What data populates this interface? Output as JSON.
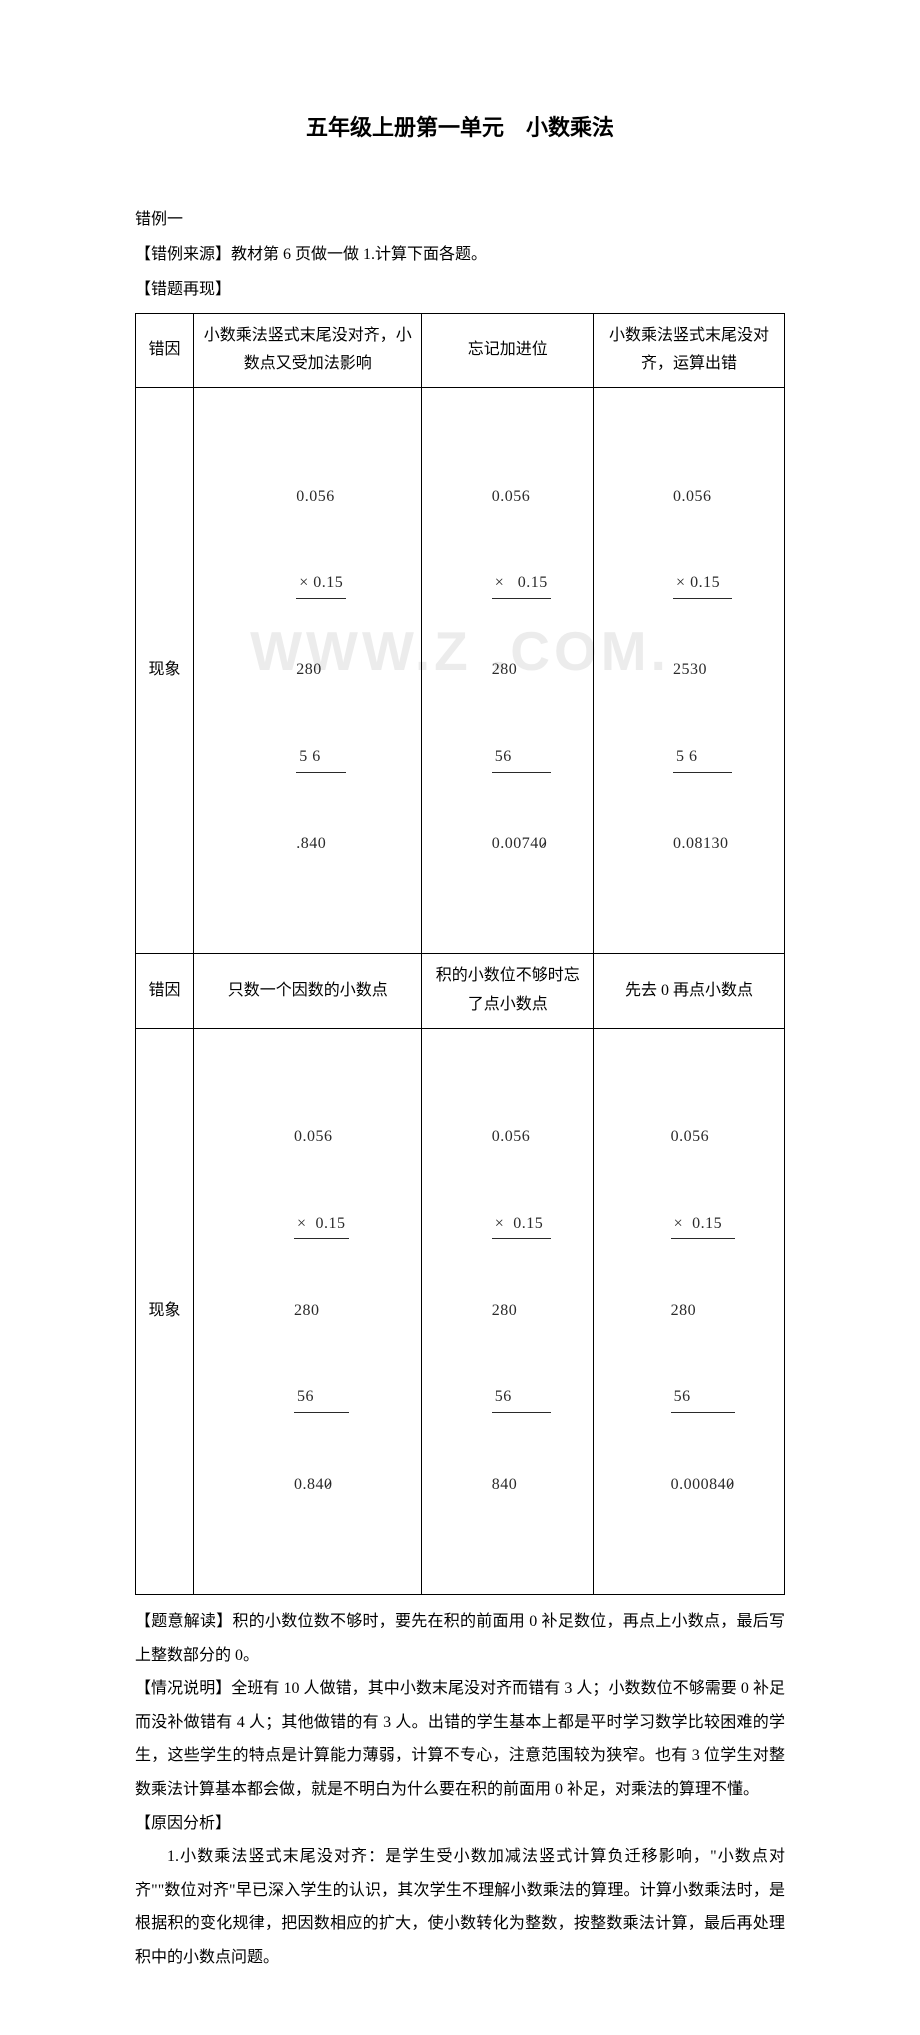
{
  "title": "五年级上册第一单元　小数乘法",
  "labels": {
    "example": "错例一",
    "source_label": "【错例来源】",
    "source_text": "教材第 6 页做一做 1.计算下面各题。",
    "reproduce_label": "【错题再现】",
    "interpret_label": "【题意解读】",
    "interpret_text": "积的小数位数不够时，要先在积的前面用 0 补足数位，再点上小数点，最后写上整数部分的 0。",
    "situation_label": "【情况说明】",
    "situation_text": "全班有 10 人做错，其中小数末尾没对齐而错有 3 人；小数数位不够需要 0 补足而没补做错有 4 人；其他做错的有 3 人。出错的学生基本上都是平时学习数学比较困难的学生，这些学生的特点是计算能力薄弱，计算不专心，注意范围较为狭窄。也有 3 位学生对整数乘法计算基本都会做，就是不明白为什么要在积的前面用 0 补足，对乘法的算理不懂。",
    "cause_label": "【原因分析】",
    "cause_text": "1.小数乘法竖式末尾没对齐：是学生受小数加减法竖式计算负迁移影响，\"小数点对齐\"\"数位对齐\"早已深入学生的认识，其次学生不理解小数乘法的算理。计算小数乘法时，是根据积的变化规律，把因数相应的扩大，使小数转化为整数，按整数乘法计算，最后再处理积中的小数点问题。"
  },
  "table": {
    "row_labels": {
      "cause": "错因",
      "phenom": "现象"
    },
    "r1": {
      "c1": "小数乘法竖式末尾没对齐，小数点又受加法影响",
      "c2": "忘记加进位",
      "c3": "小数乘法竖式末尾没对齐，运算出错"
    },
    "r3": {
      "c1": "只数一个因数的小数点",
      "c2": "积的小数位不够时忘了点小数点",
      "c3": "先去 0 再点小数点"
    }
  },
  "watermark": "WWW.Z       .COM.",
  "colors": {
    "text": "#000000",
    "bg": "#ffffff",
    "watermark": "rgba(200,200,200,0.35)",
    "handwriting": "#2a2a2a"
  },
  "handwriting_calcs": {
    "r2c1": {
      "n1": "0.056",
      "n2": "× 0.15",
      "p1": "280",
      "p2": "5 6   ",
      "res": ".840"
    },
    "r2c2": {
      "n1": "0.056",
      "n2": "×   0.15",
      "p1": "280",
      "p2": "56  ",
      "res": "0.0074",
      "res_strike": "0"
    },
    "r2c3": {
      "n1": "0.056",
      "n2": "× 0.15  ",
      "p1": "2530",
      "p2": "5 6    ",
      "res": "0.08130"
    },
    "r4c1": {
      "n1": "0.056",
      "n2": "×  0.15",
      "p1": "280",
      "p2": "56  ",
      "res": "0.84",
      "res_strike": "0"
    },
    "r4c2": {
      "n1": "0.056",
      "n2": "×  0.15 ",
      "p1": "280",
      "p2": "56  ",
      "res": "840"
    },
    "r4c3": {
      "n1": "0.056",
      "n2": "×  0.15",
      "p1": "280",
      "p2": "56  ",
      "res": "0.00084",
      "res_strike": "0"
    }
  }
}
